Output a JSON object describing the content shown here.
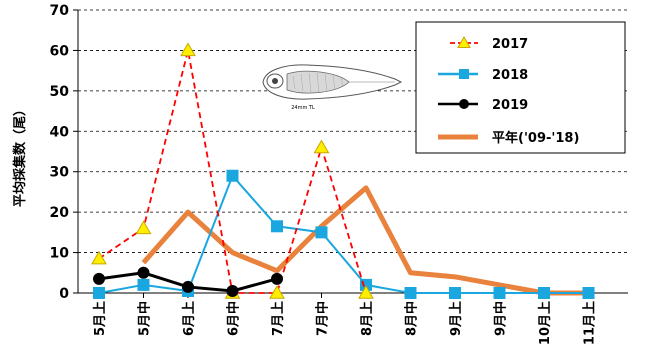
{
  "chart_data": {
    "type": "line",
    "title": "",
    "xlabel": "",
    "ylabel": "平均採集数（尾）",
    "ylim": [
      0,
      70
    ],
    "yticks": [
      0,
      10,
      20,
      30,
      40,
      50,
      60,
      70
    ],
    "grid": true,
    "legend_position": "top-right",
    "categories": [
      "5月上",
      "5月中",
      "6月上",
      "6月中",
      "7月上",
      "7月中",
      "8月上",
      "8月中",
      "9月上",
      "9月中",
      "10月上",
      "11月上"
    ],
    "series": [
      {
        "name": "2017",
        "color": "#ff0000",
        "marker": "triangle",
        "style": "dashed",
        "values": [
          8.5,
          16,
          60,
          0,
          0,
          36,
          0,
          null,
          null,
          null,
          null,
          null
        ]
      },
      {
        "name": "2018",
        "color": "#1aa7e0",
        "marker": "square",
        "style": "solid",
        "values": [
          0,
          2,
          0.5,
          29,
          16.5,
          15,
          2,
          0,
          0,
          0,
          0,
          0
        ]
      },
      {
        "name": "2019",
        "color": "#000000",
        "marker": "circle",
        "style": "solid",
        "values": [
          3.5,
          5,
          1.5,
          0.5,
          3.5,
          null,
          null,
          null,
          null,
          null,
          null,
          null
        ]
      },
      {
        "name": "平年('09-'18)",
        "color": "#e8823c",
        "marker": "none",
        "style": "thick",
        "values": [
          null,
          7.5,
          20,
          10,
          5.5,
          16.5,
          26,
          5,
          4,
          2,
          0,
          0
        ]
      }
    ]
  },
  "image": {
    "icon": "fish-larva-illustration-icon",
    "caption": "24mm TL"
  }
}
